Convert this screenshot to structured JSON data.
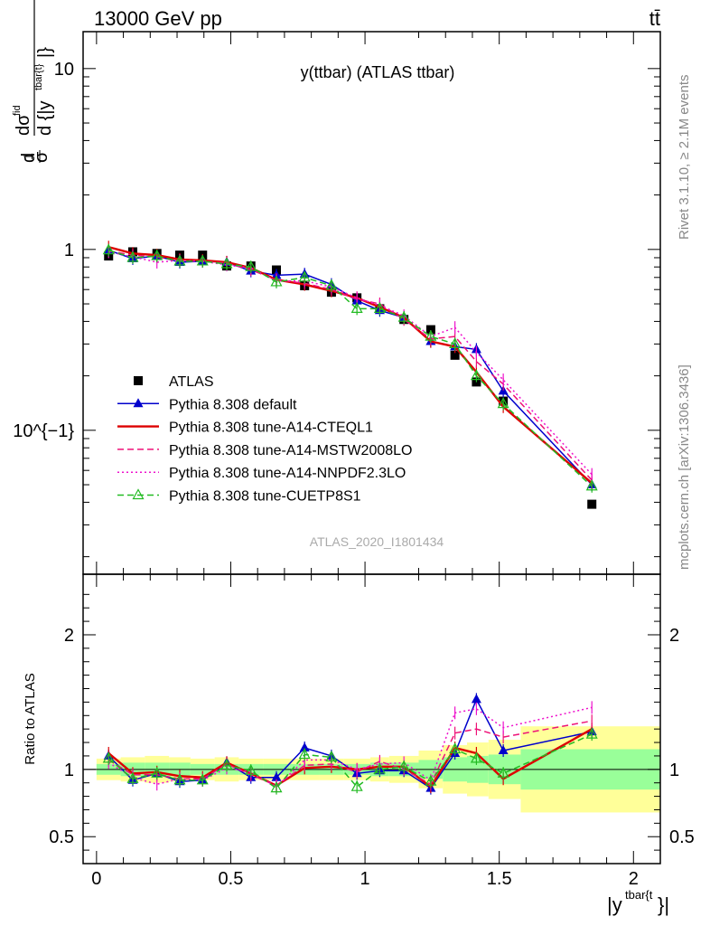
{
  "header": {
    "left": "13000 GeV pp",
    "right": "tt̄"
  },
  "side_labels": {
    "rivet": "Rivet 3.1.10, ≥ 2.1M events",
    "mcplots": "mcplots.cern.ch [arXiv:1306.3436]"
  },
  "chart_data": [
    {
      "type": "line",
      "panel": "main",
      "title": "y(ttbar) (ATLAS ttbar)",
      "ylabel": "1/σ dσ^fid/d{|y^{tbar{t}}|}",
      "watermark": "ATLAS_2020_I1801434",
      "yscale": "log",
      "xlim": [
        -0.05,
        2.1
      ],
      "ylim": [
        0.016,
        16
      ],
      "x_ticks": [
        "0",
        "0.5",
        "1",
        "1.5",
        "2"
      ],
      "y_ticks": [
        "1",
        "10",
        "10^{−1}"
      ],
      "x": [
        0.045,
        0.135,
        0.225,
        0.31,
        0.395,
        0.485,
        0.575,
        0.67,
        0.775,
        0.875,
        0.97,
        1.055,
        1.145,
        1.245,
        1.335,
        1.415,
        1.515,
        1.845
      ],
      "legend": {
        "placement": "lower-left",
        "entries": [
          "ATLAS",
          "Pythia 8.308 default",
          "Pythia 8.308 tune-A14-CTEQL1",
          "Pythia 8.308 tune-A14-MSTW2008LO",
          "Pythia 8.308 tune-A14-NNPDF2.3LO",
          "Pythia 8.308 tune-CUETP8S1"
        ]
      },
      "series": [
        {
          "name": "ATLAS",
          "color": "#000000",
          "marker": "square",
          "values": [
            0.92,
            0.97,
            0.95,
            0.93,
            0.93,
            0.81,
            0.81,
            0.77,
            0.63,
            0.58,
            0.54,
            0.47,
            0.41,
            0.36,
            0.26,
            0.185,
            0.145,
            0.039
          ]
        },
        {
          "name": "Pythia 8.308 default",
          "color": "#0000cc",
          "style": "solid",
          "marker": "triangle",
          "values": [
            0.99,
            0.89,
            0.92,
            0.85,
            0.86,
            0.85,
            0.76,
            0.72,
            0.73,
            0.64,
            0.52,
            0.46,
            0.42,
            0.31,
            0.29,
            0.28,
            0.165,
            0.05
          ]
        },
        {
          "name": "Pythia 8.308 tune-A14-CTEQL1",
          "color": "#dd0000",
          "style": "solid",
          "marker": "none",
          "values": [
            1.03,
            0.95,
            0.93,
            0.88,
            0.87,
            0.85,
            0.79,
            0.68,
            0.64,
            0.59,
            0.54,
            0.48,
            0.42,
            0.31,
            0.29,
            0.21,
            0.135,
            0.051
          ]
        },
        {
          "name": "Pythia 8.308 tune-A14-MSTW2008LO",
          "color": "#ee1177",
          "style": "dashed",
          "marker": "none",
          "values": [
            0.98,
            0.93,
            0.91,
            0.86,
            0.86,
            0.84,
            0.77,
            0.68,
            0.65,
            0.6,
            0.53,
            0.5,
            0.41,
            0.32,
            0.33,
            0.24,
            0.18,
            0.053
          ]
        },
        {
          "name": "Pythia 8.308 tune-A14-NNPDF2.3LO",
          "color": "#ee11cc",
          "style": "dotted",
          "marker": "none",
          "values": [
            0.97,
            0.91,
            0.85,
            0.87,
            0.86,
            0.82,
            0.79,
            0.67,
            0.67,
            0.62,
            0.54,
            0.49,
            0.43,
            0.33,
            0.37,
            0.27,
            0.19,
            0.057
          ]
        },
        {
          "name": "Pythia 8.308 tune-CUETP8S1",
          "color": "#22bb22",
          "style": "dashed",
          "marker": "open-triangle",
          "values": [
            0.99,
            0.9,
            0.92,
            0.86,
            0.86,
            0.83,
            0.8,
            0.66,
            0.7,
            0.63,
            0.47,
            0.47,
            0.42,
            0.33,
            0.3,
            0.2,
            0.14,
            0.049
          ]
        }
      ]
    },
    {
      "type": "line",
      "panel": "ratio",
      "ylabel": "Ratio to ATLAS",
      "xlabel": "|y^{tbar{t}}|",
      "xlim": [
        -0.05,
        2.1
      ],
      "ylim": [
        0.3,
        2.45
      ],
      "x_ticks": [
        "0",
        "0.5",
        "1",
        "1.5",
        "2"
      ],
      "y_ticks": [
        "0.5",
        "1",
        "2"
      ],
      "x": [
        0.045,
        0.135,
        0.225,
        0.31,
        0.395,
        0.485,
        0.575,
        0.67,
        0.775,
        0.875,
        0.97,
        1.055,
        1.145,
        1.245,
        1.335,
        1.415,
        1.515,
        1.845
      ],
      "bands": {
        "bin_edges": [
          0.0,
          0.09,
          0.18,
          0.27,
          0.35,
          0.44,
          0.53,
          0.62,
          0.72,
          0.83,
          0.92,
          1.02,
          1.09,
          1.2,
          1.29,
          1.38,
          1.46,
          1.58,
          2.1
        ],
        "green_halfwidth": [
          0.04,
          0.05,
          0.05,
          0.05,
          0.04,
          0.04,
          0.04,
          0.04,
          0.04,
          0.04,
          0.04,
          0.05,
          0.05,
          0.07,
          0.09,
          0.1,
          0.11,
          0.15
        ],
        "yellow_halfwidth": [
          0.08,
          0.09,
          0.1,
          0.09,
          0.08,
          0.09,
          0.08,
          0.08,
          0.08,
          0.08,
          0.08,
          0.09,
          0.1,
          0.14,
          0.18,
          0.2,
          0.22,
          0.32
        ],
        "green_color": "#99ff99",
        "yellow_color": "#ffff99"
      },
      "series": [
        {
          "name": "Pythia 8.308 default",
          "color": "#0000cc",
          "style": "solid",
          "marker": "triangle",
          "values": [
            1.1,
            0.92,
            0.97,
            0.91,
            0.92,
            1.05,
            0.94,
            0.94,
            1.16,
            1.1,
            0.97,
            0.99,
            0.99,
            0.86,
            1.12,
            1.52,
            1.14,
            1.28
          ]
        },
        {
          "name": "Pythia 8.308 tune-A14-CTEQL1",
          "color": "#dd0000",
          "style": "solid",
          "marker": "none",
          "values": [
            1.12,
            0.97,
            0.98,
            0.95,
            0.94,
            1.05,
            0.97,
            0.88,
            1.01,
            1.02,
            1.0,
            1.02,
            1.02,
            0.87,
            1.16,
            1.12,
            0.93,
            1.3
          ]
        },
        {
          "name": "Pythia 8.308 tune-A14-MSTW2008LO",
          "color": "#ee1177",
          "style": "dashed",
          "marker": "none",
          "values": [
            1.07,
            0.96,
            0.96,
            0.93,
            0.93,
            1.04,
            0.96,
            0.88,
            1.03,
            1.04,
            0.98,
            1.06,
            1.0,
            0.89,
            1.27,
            1.3,
            1.24,
            1.36
          ]
        },
        {
          "name": "Pythia 8.308 tune-A14-NNPDF2.3LO",
          "color": "#ee11cc",
          "style": "dotted",
          "marker": "none",
          "values": [
            1.05,
            0.94,
            0.89,
            0.93,
            0.92,
            1.01,
            0.98,
            0.87,
            1.07,
            1.07,
            1.0,
            1.04,
            1.05,
            0.92,
            1.42,
            1.45,
            1.31,
            1.46
          ]
        },
        {
          "name": "Pythia 8.308 tune-CUETP8S1",
          "color": "#22bb22",
          "style": "dashed",
          "marker": "open-triangle",
          "values": [
            1.08,
            0.93,
            0.97,
            0.92,
            0.92,
            1.03,
            0.99,
            0.86,
            1.11,
            1.09,
            0.87,
            1.0,
            1.02,
            0.91,
            1.15,
            1.08,
            0.97,
            1.26
          ]
        }
      ]
    }
  ]
}
